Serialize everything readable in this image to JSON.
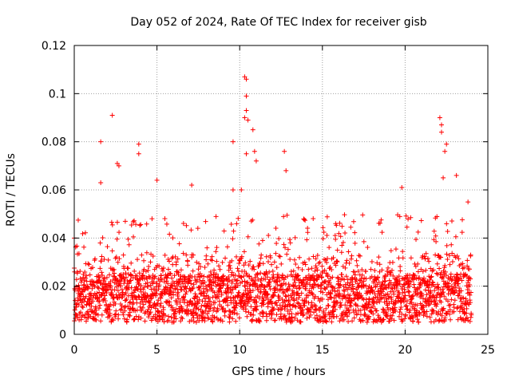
{
  "chart_data": {
    "type": "scatter",
    "title": "Day 052 of 2024, Rate Of TEC Index for receiver gisb",
    "xlabel": "GPS time / hours",
    "ylabel": "ROTI / TECUs",
    "xlim": [
      0,
      25
    ],
    "ylim": [
      0,
      0.12
    ],
    "xticks": [
      0,
      5,
      10,
      15,
      20,
      25
    ],
    "xtick_labels": [
      "0",
      "5",
      "10",
      "15",
      "20",
      "25"
    ],
    "yticks": [
      0,
      0.02,
      0.04,
      0.06,
      0.08,
      0.1,
      0.12
    ],
    "ytick_labels": [
      "0",
      "0.02",
      "0.04",
      "0.06",
      "0.08",
      "0.1",
      "0.12"
    ],
    "grid": true,
    "marker": "+",
    "series": [
      {
        "name": "ROTI",
        "color": "#ff0000",
        "x_range": [
          0,
          24
        ],
        "baseline_band": [
          0.005,
          0.025
        ],
        "notable_points": [
          {
            "x": 0.0,
            "y": 0.04
          },
          {
            "x": 1.6,
            "y": 0.08
          },
          {
            "x": 1.6,
            "y": 0.063
          },
          {
            "x": 2.3,
            "y": 0.091
          },
          {
            "x": 2.6,
            "y": 0.071
          },
          {
            "x": 2.7,
            "y": 0.07
          },
          {
            "x": 3.9,
            "y": 0.079
          },
          {
            "x": 3.9,
            "y": 0.075
          },
          {
            "x": 5.0,
            "y": 0.064
          },
          {
            "x": 7.1,
            "y": 0.062
          },
          {
            "x": 9.6,
            "y": 0.08
          },
          {
            "x": 9.6,
            "y": 0.06
          },
          {
            "x": 10.1,
            "y": 0.06
          },
          {
            "x": 10.3,
            "y": 0.107
          },
          {
            "x": 10.4,
            "y": 0.106
          },
          {
            "x": 10.4,
            "y": 0.099
          },
          {
            "x": 10.4,
            "y": 0.093
          },
          {
            "x": 10.3,
            "y": 0.09
          },
          {
            "x": 10.5,
            "y": 0.089
          },
          {
            "x": 10.8,
            "y": 0.085
          },
          {
            "x": 10.4,
            "y": 0.075
          },
          {
            "x": 10.9,
            "y": 0.076
          },
          {
            "x": 11.0,
            "y": 0.072
          },
          {
            "x": 12.7,
            "y": 0.076
          },
          {
            "x": 12.8,
            "y": 0.068
          },
          {
            "x": 19.8,
            "y": 0.061
          },
          {
            "x": 22.1,
            "y": 0.09
          },
          {
            "x": 22.2,
            "y": 0.087
          },
          {
            "x": 22.2,
            "y": 0.084
          },
          {
            "x": 22.5,
            "y": 0.079
          },
          {
            "x": 22.4,
            "y": 0.076
          },
          {
            "x": 23.1,
            "y": 0.066
          },
          {
            "x": 22.3,
            "y": 0.065
          },
          {
            "x": 23.8,
            "y": 0.055
          }
        ]
      }
    ]
  }
}
